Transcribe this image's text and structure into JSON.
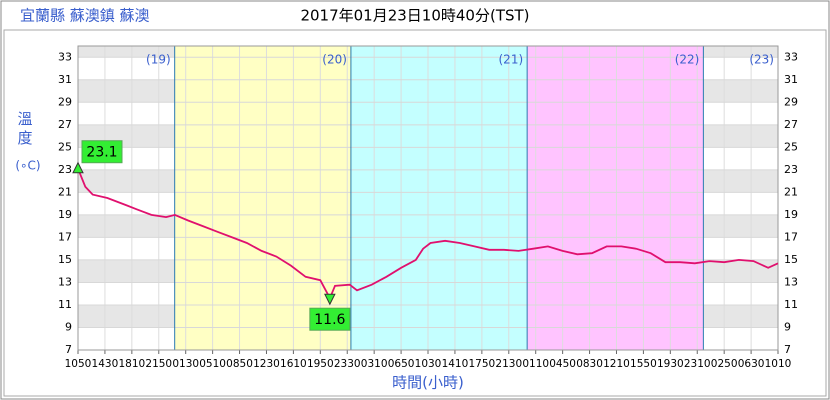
{
  "chart_data": {
    "type": "line",
    "station": "宜蘭縣 蘇澳鎮 蘇澳",
    "title": "2017年01月23日10時40分(TST)",
    "y_label": "溫度",
    "y_unit": "(∘C)",
    "x_label": "時間(小時)",
    "xlim": [
      0,
      95.33
    ],
    "xticks": [
      {
        "value": 0,
        "label": "1050"
      },
      {
        "value": 3.667,
        "label": "1430"
      },
      {
        "value": 7.333,
        "label": "1810"
      },
      {
        "value": 11,
        "label": "2150"
      },
      {
        "value": 14.667,
        "label": "0130"
      },
      {
        "value": 18.333,
        "label": "0510"
      },
      {
        "value": 22,
        "label": "0850"
      },
      {
        "value": 25.667,
        "label": "1230"
      },
      {
        "value": 29.333,
        "label": "1610"
      },
      {
        "value": 33,
        "label": "1950"
      },
      {
        "value": 36.667,
        "label": "2330"
      },
      {
        "value": 40.333,
        "label": "0310"
      },
      {
        "value": 44,
        "label": "0650"
      },
      {
        "value": 47.667,
        "label": "1030"
      },
      {
        "value": 51.333,
        "label": "1410"
      },
      {
        "value": 55,
        "label": "1750"
      },
      {
        "value": 58.667,
        "label": "2130"
      },
      {
        "value": 62.333,
        "label": "0110"
      },
      {
        "value": 66,
        "label": "0450"
      },
      {
        "value": 69.667,
        "label": "0830"
      },
      {
        "value": 73.333,
        "label": "1210"
      },
      {
        "value": 77,
        "label": "1550"
      },
      {
        "value": 80.667,
        "label": "1930"
      },
      {
        "value": 84.333,
        "label": "2310"
      },
      {
        "value": 88,
        "label": "0250"
      },
      {
        "value": 91.667,
        "label": "0630"
      },
      {
        "value": 95.33,
        "label": "1010"
      }
    ],
    "ylim": [
      7,
      34
    ],
    "yticks": [
      7,
      9,
      11,
      13,
      15,
      17,
      19,
      21,
      23,
      25,
      27,
      29,
      31,
      33
    ],
    "day_labels": [
      {
        "x": 13.167,
        "label": "(19)"
      },
      {
        "x": 37.167,
        "label": "(20)"
      },
      {
        "x": 61.167,
        "label": "(21)"
      },
      {
        "x": 85.167,
        "label": "(22)"
      },
      {
        "x": 95.33,
        "label": "(23)"
      }
    ],
    "regions": [
      {
        "x0": 13.167,
        "x1": 37.167,
        "color": "#ffffc4"
      },
      {
        "x0": 37.167,
        "x1": 61.167,
        "color": "#c4ffff"
      },
      {
        "x0": 61.167,
        "x1": 85.167,
        "color": "#ffc4ff"
      }
    ],
    "x": [
      0,
      1,
      2,
      4,
      6,
      8,
      10,
      12,
      13.2,
      15,
      17,
      19,
      21,
      23,
      25,
      27,
      29,
      31,
      33,
      34.3,
      35,
      37,
      38,
      40,
      42,
      44,
      46,
      47,
      48,
      50,
      52,
      54,
      56,
      58,
      60,
      62,
      64,
      66,
      68,
      70,
      72,
      74,
      76,
      78,
      80,
      82,
      84,
      86,
      88,
      90,
      92,
      94,
      95.33
    ],
    "series": [
      {
        "color": "#e0106e",
        "values": [
          23.1,
          21.5,
          20.8,
          20.5,
          20.0,
          19.5,
          19.0,
          18.8,
          19.0,
          18.5,
          18.0,
          17.5,
          17.0,
          16.5,
          15.8,
          15.3,
          14.5,
          13.5,
          13.2,
          11.6,
          12.7,
          12.8,
          12.3,
          12.8,
          13.5,
          14.3,
          15.0,
          16.0,
          16.5,
          16.7,
          16.5,
          16.2,
          15.9,
          15.9,
          15.8,
          16.0,
          16.2,
          15.8,
          15.5,
          15.6,
          16.2,
          16.2,
          16.0,
          15.6,
          14.8,
          14.8,
          14.7,
          14.9,
          14.8,
          15.0,
          14.9,
          14.3,
          14.7
        ]
      }
    ],
    "markers": [
      {
        "x": 0,
        "value": 23.1
      },
      {
        "x": 34.3,
        "value": 11.6
      }
    ],
    "marker_color": "#33ee33"
  }
}
